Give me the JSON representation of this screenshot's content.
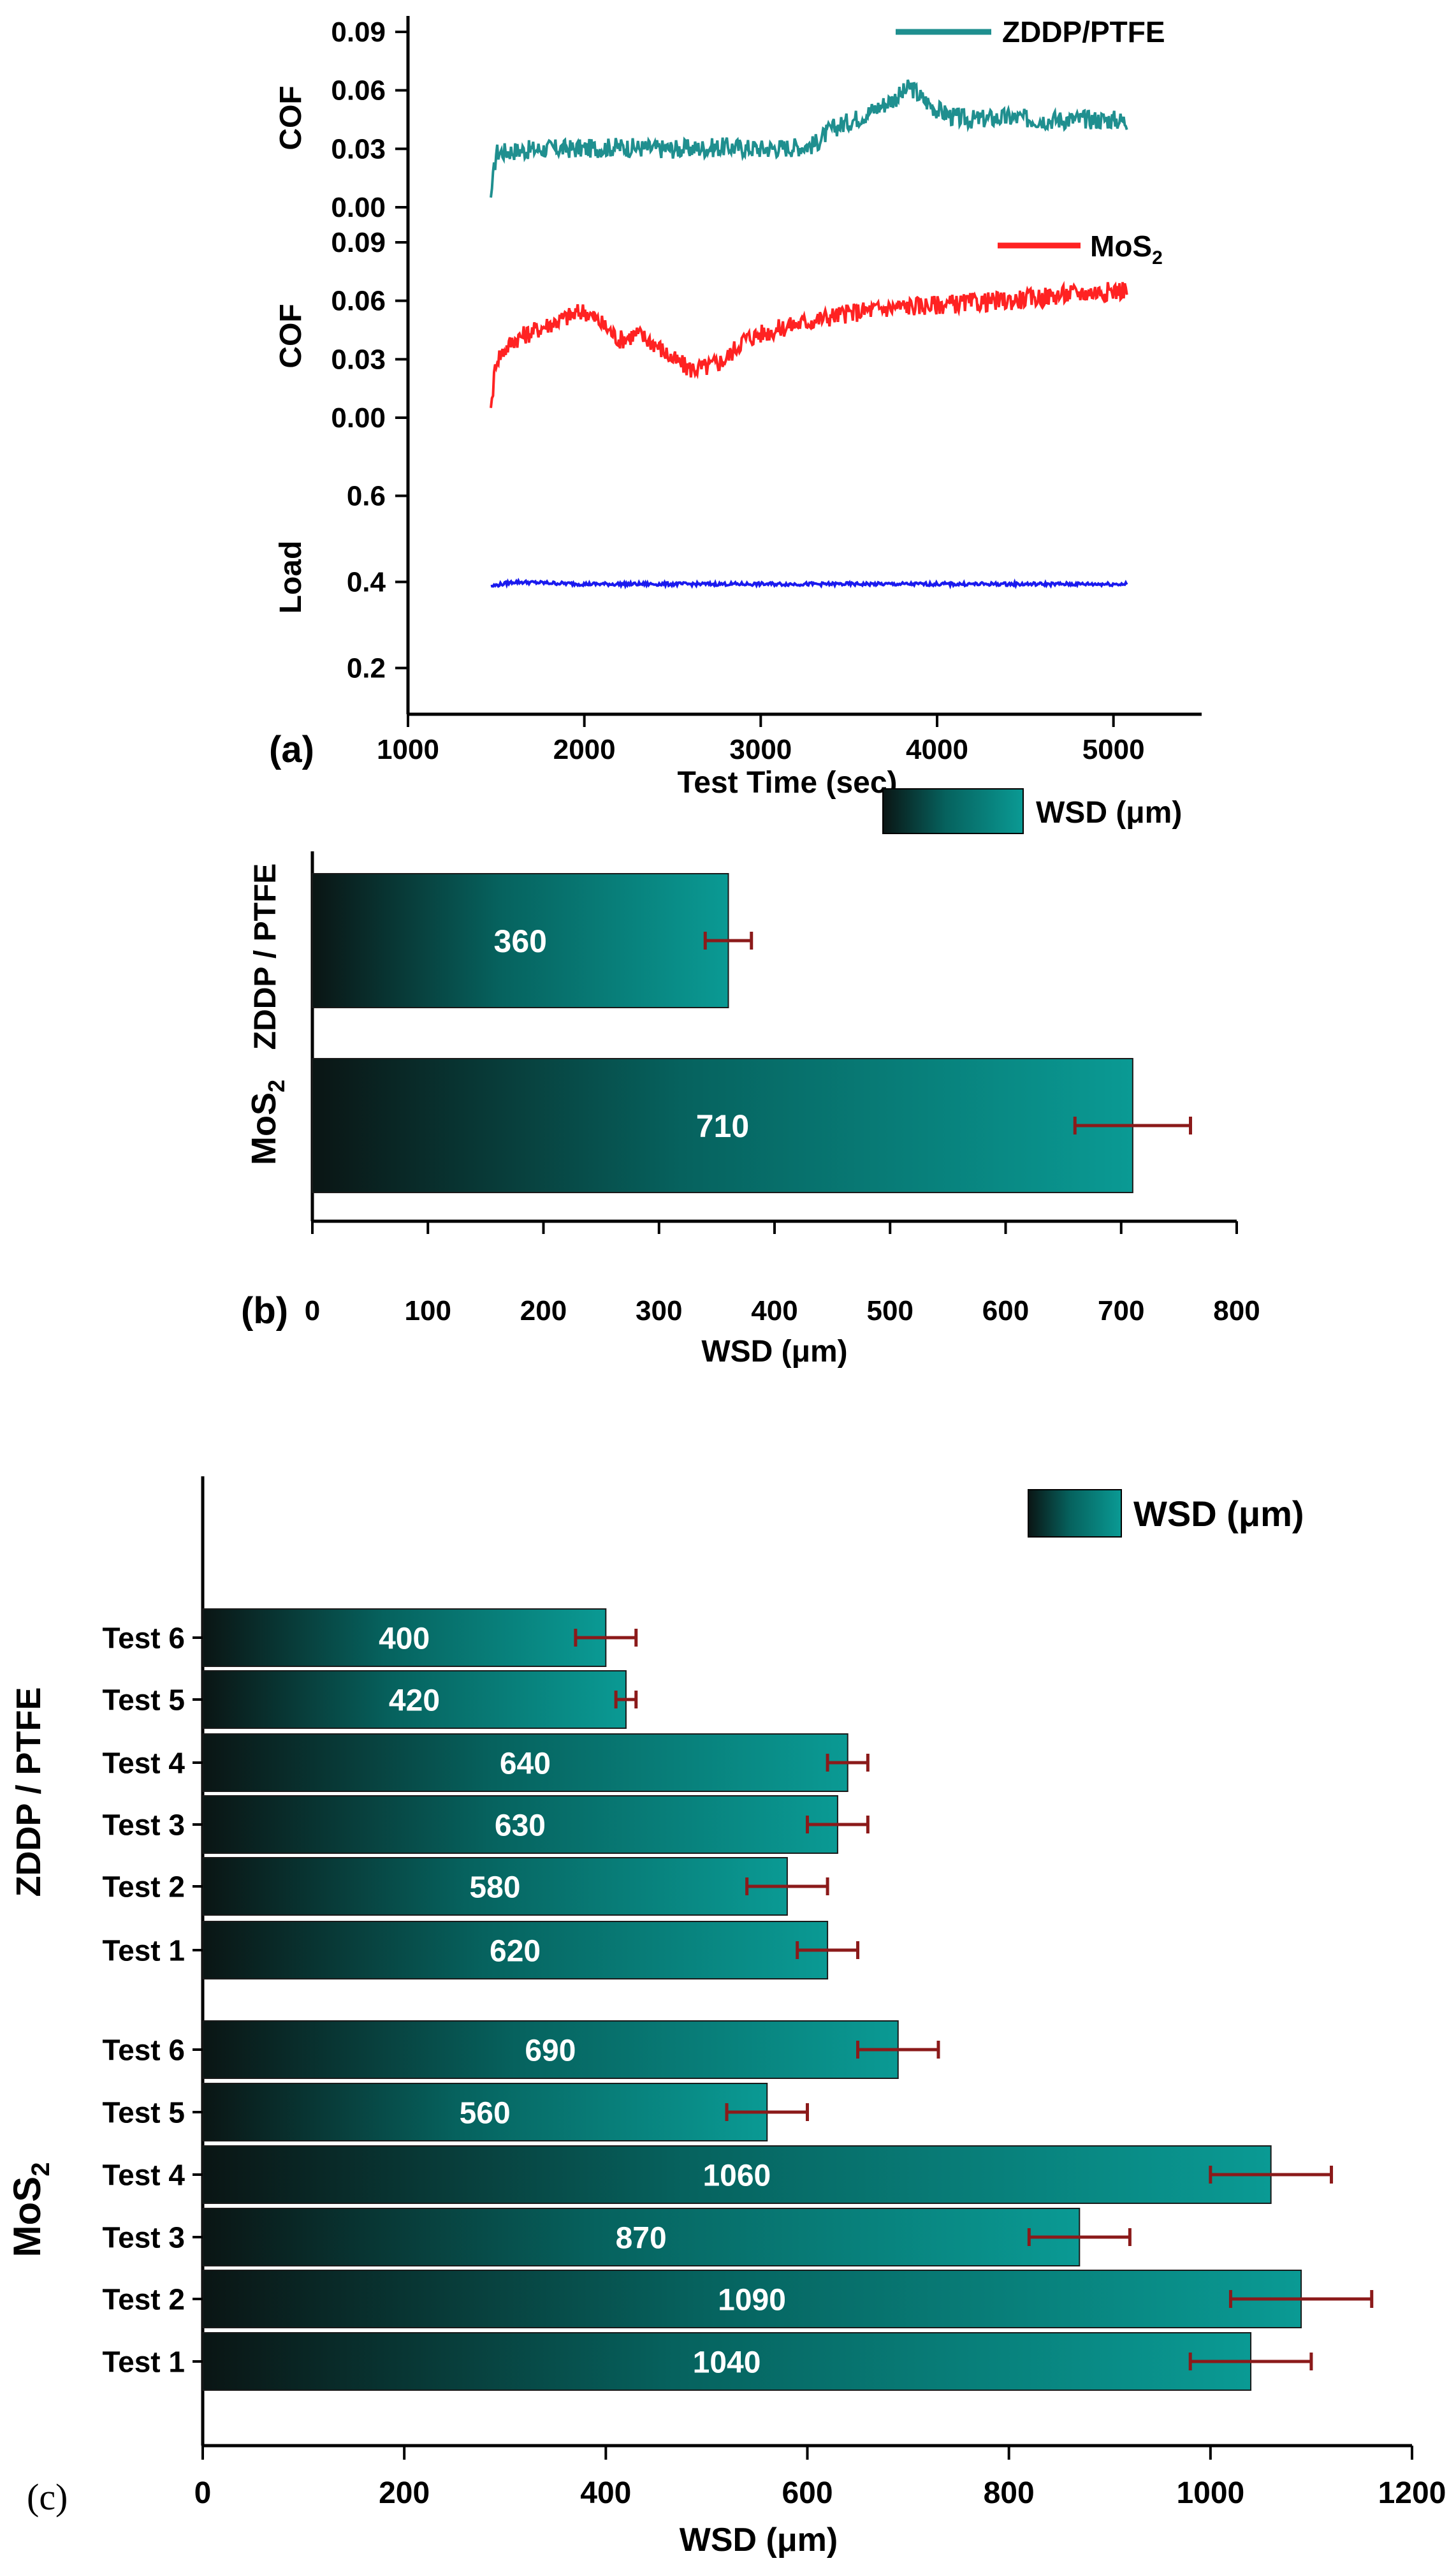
{
  "chart_data": [
    {
      "panel": "(a)",
      "type": "line",
      "xlabel": "Test Time (sec)",
      "xlim": [
        1000,
        5500
      ],
      "xticks": [
        1000,
        2000,
        3000,
        4000,
        5000
      ],
      "subplots": [
        {
          "ylabel": "COF",
          "ylim": [
            0,
            0.09
          ],
          "yticks": [
            "0.00",
            "0.03",
            "0.06",
            "0.09"
          ],
          "series": [
            {
              "name": "ZDDP/PTFE",
              "color": "#1f8f8f",
              "x": [
                1470,
                1500,
                1600,
                1800,
                2000,
                2200,
                2400,
                2600,
                2800,
                3000,
                3200,
                3300,
                3400,
                3500,
                3600,
                3700,
                3800,
                3850,
                3900,
                4000,
                4100,
                4200,
                4400,
                4600,
                4800,
                5000,
                5080
              ],
              "y": [
                0.005,
                0.028,
                0.029,
                0.03,
                0.03,
                0.031,
                0.03,
                0.03,
                0.031,
                0.03,
                0.031,
                0.032,
                0.04,
                0.044,
                0.048,
                0.053,
                0.058,
                0.062,
                0.057,
                0.05,
                0.046,
                0.045,
                0.046,
                0.045,
                0.045,
                0.045,
                0.044
              ]
            }
          ]
        },
        {
          "ylabel": "COF",
          "ylim": [
            0,
            0.09
          ],
          "yticks": [
            "0.00",
            "0.03",
            "0.06",
            "0.09"
          ],
          "series": [
            {
              "name_main": "MoS",
              "name_sub": "2",
              "color": "#ff2222",
              "x": [
                1470,
                1500,
                1600,
                1800,
                2000,
                2100,
                2200,
                2300,
                2400,
                2500,
                2600,
                2700,
                2800,
                2850,
                2900,
                3000,
                3200,
                3400,
                3600,
                3800,
                4000,
                4200,
                4400,
                4600,
                4800,
                5000,
                5080
              ],
              "y": [
                0.005,
                0.03,
                0.04,
                0.048,
                0.055,
                0.048,
                0.04,
                0.043,
                0.038,
                0.03,
                0.025,
                0.026,
                0.03,
                0.035,
                0.04,
                0.043,
                0.048,
                0.052,
                0.055,
                0.057,
                0.058,
                0.059,
                0.06,
                0.062,
                0.064,
                0.065,
                0.066
              ]
            }
          ]
        },
        {
          "ylabel": "Load",
          "ylim": [
            0.1,
            0.7
          ],
          "yticks": [
            "0.2",
            "0.4",
            "0.6"
          ],
          "series": [
            {
              "name": "",
              "color": "#1a1aee",
              "x": [
                1470,
                1600,
                2000,
                2500,
                3000,
                3500,
                4000,
                4500,
                5080
              ],
              "y": [
                0.39,
                0.4,
                0.395,
                0.395,
                0.395,
                0.395,
                0.395,
                0.395,
                0.395
              ]
            }
          ]
        }
      ]
    },
    {
      "panel": "(b)",
      "type": "bar",
      "orientation": "horizontal",
      "xlabel": "WSD (μm)",
      "legend": "WSD (μm)",
      "legend_position": "top-right",
      "xlim": [
        0,
        800
      ],
      "xticks": [
        0,
        100,
        200,
        300,
        400,
        500,
        600,
        700,
        800
      ],
      "groups": [
        {
          "label": "ZDDP / PTFE",
          "value": 360,
          "value_label": "360",
          "err": 20
        },
        {
          "label_main": "MoS",
          "label_sub": "2",
          "value": 710,
          "value_label": "710",
          "err": 50
        }
      ]
    },
    {
      "panel": "(c)",
      "type": "bar",
      "orientation": "horizontal",
      "xlabel": "WSD (μm)",
      "legend": "WSD (μm)",
      "legend_position": "top-right",
      "xlim": [
        0,
        1200
      ],
      "xticks": [
        0,
        200,
        400,
        600,
        800,
        1000,
        1200
      ],
      "groups": [
        {
          "label": "ZDDP / PTFE",
          "bars": [
            {
              "label": "Test 6",
              "value": 400,
              "value_label": "400",
              "err": 30
            },
            {
              "label": "Test 5",
              "value": 420,
              "value_label": "420",
              "err": 10
            },
            {
              "label": "Test 4",
              "value": 640,
              "value_label": "640",
              "err": 20
            },
            {
              "label": "Test 3",
              "value": 630,
              "value_label": "630",
              "err": 30
            },
            {
              "label": "Test 2",
              "value": 580,
              "value_label": "580",
              "err": 40
            },
            {
              "label": "Test 1",
              "value": 620,
              "value_label": "620",
              "err": 30
            }
          ]
        },
        {
          "label_main": "MoS",
          "label_sub": "2",
          "bars": [
            {
              "label": "Test 6",
              "value": 690,
              "value_label": "690",
              "err": 40
            },
            {
              "label": "Test 5",
              "value": 560,
              "value_label": "560",
              "err": 40
            },
            {
              "label": "Test 4",
              "value": 1060,
              "value_label": "1060",
              "err": 60
            },
            {
              "label": "Test 3",
              "value": 870,
              "value_label": "870",
              "err": 50
            },
            {
              "label": "Test 2",
              "value": 1090,
              "value_label": "1090",
              "err": 70
            },
            {
              "label": "Test 1",
              "value": 1040,
              "value_label": "1040",
              "err": 60
            }
          ]
        }
      ]
    }
  ],
  "colors": {
    "bar_start": "#0a1514",
    "bar_end": "#0a9a94",
    "error_bar": "#8b1a1a"
  }
}
